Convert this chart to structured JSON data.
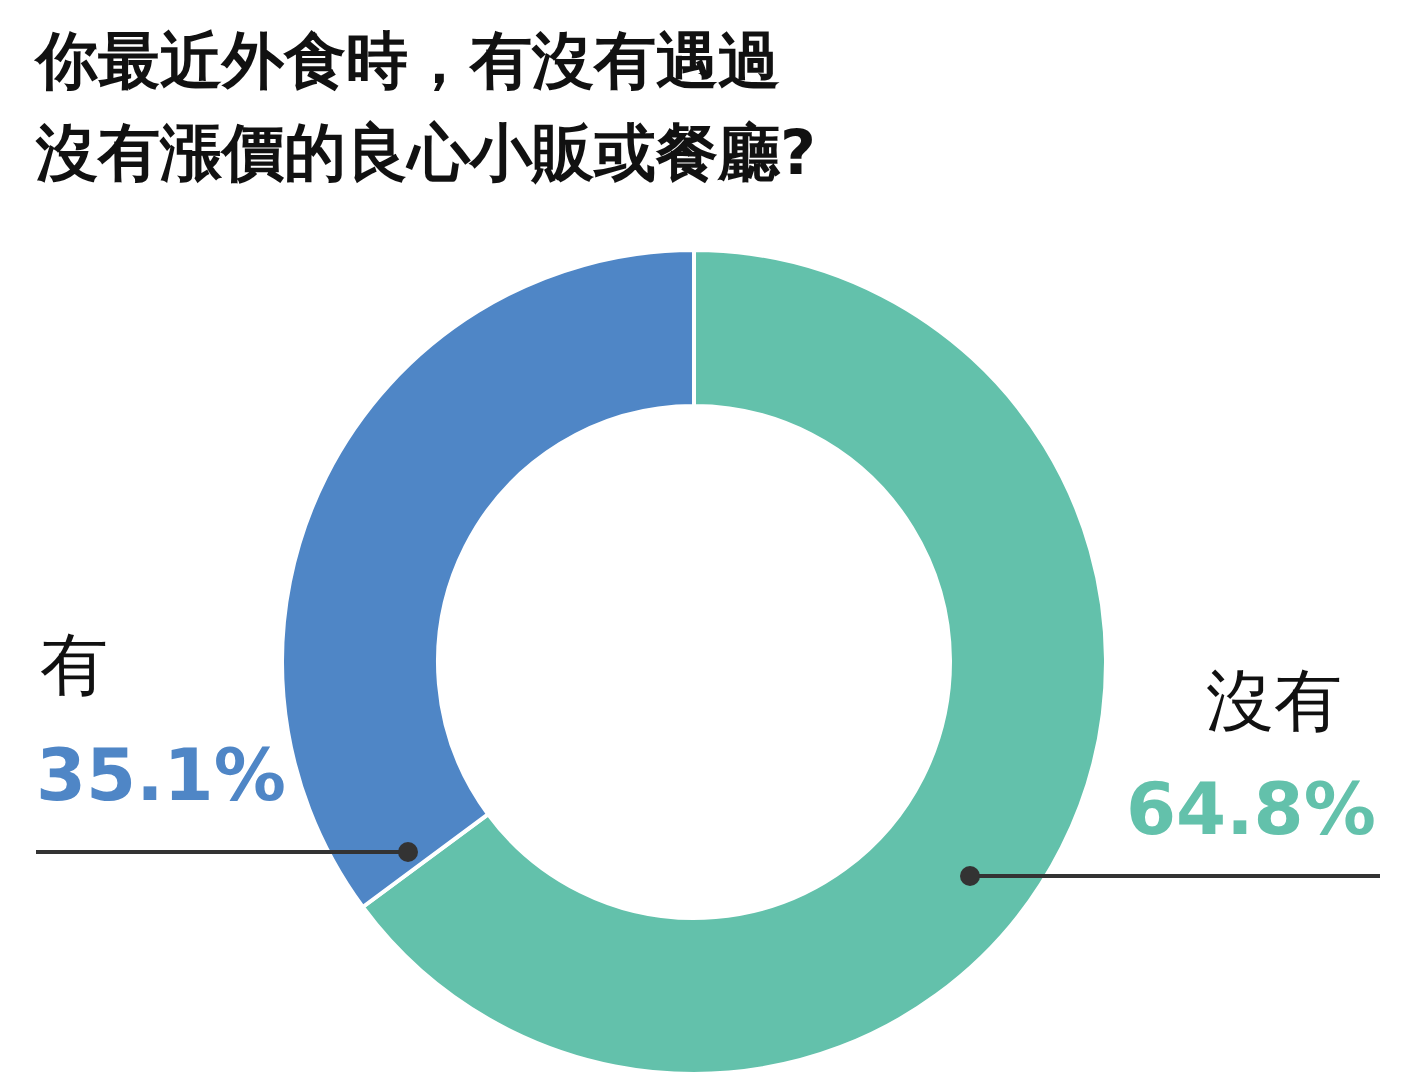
{
  "chart_data": {
    "type": "donut",
    "title": "你最近外食時，有沒有遇過沒有漲價的良心小販或餐廳?",
    "categories": [
      "沒有",
      "有"
    ],
    "values": [
      64.8,
      35.1
    ],
    "colors": [
      "#63c1ab",
      "#4f86c6"
    ],
    "value_labels": [
      "64.8%",
      "35.1%"
    ]
  }
}
